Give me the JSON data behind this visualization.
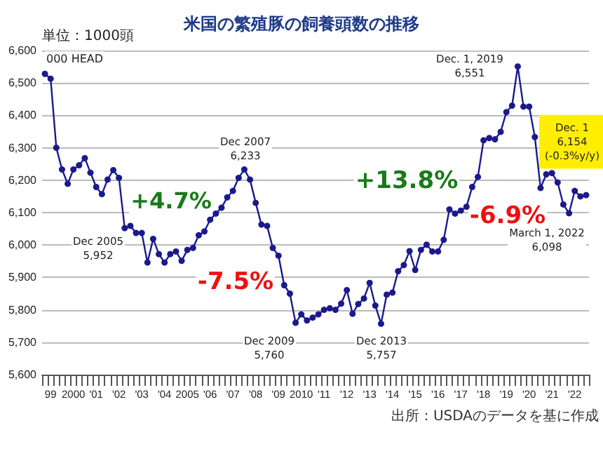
{
  "chart_data": {
    "type": "line",
    "title": "米国の繁殖豚の飼養頭数の推移",
    "ylabel": "単位：1000頭",
    "categories": [
      null,
      "99",
      null,
      null,
      null,
      "2000",
      null,
      null,
      null,
      "'01",
      null,
      null,
      null,
      "'02",
      null,
      null,
      null,
      "'03",
      null,
      null,
      null,
      "'04",
      null,
      null,
      null,
      "2005",
      null,
      null,
      null,
      "'06",
      null,
      null,
      null,
      "'07",
      null,
      null,
      null,
      "'08",
      null,
      null,
      null,
      "'09",
      null,
      null,
      null,
      "2010",
      null,
      null,
      null,
      "'11",
      null,
      null,
      null,
      "'12",
      null,
      null,
      null,
      "'13",
      null,
      null,
      null,
      "'14",
      null,
      null,
      null,
      "'15",
      null,
      null,
      null,
      "'16",
      null,
      null,
      null,
      "'17",
      null,
      null,
      null,
      "'18",
      null,
      null,
      null,
      "'19",
      null,
      null,
      null,
      "'20",
      null,
      null,
      null,
      "'21",
      null,
      null,
      null,
      "'22",
      null,
      null
    ],
    "series": [
      {
        "color": "#1a1a8c",
        "values": [
          6528,
          6513,
          6300,
          6233,
          6189,
          6233,
          6246,
          6268,
          6223,
          6179,
          6157,
          6202,
          6231,
          6207,
          6052,
          6059,
          6037,
          6037,
          5946,
          6019,
          5972,
          5946,
          5972,
          5980,
          5951,
          5985,
          5991,
          6030,
          6042,
          6078,
          6097,
          6115,
          6147,
          6167,
          6207,
          6233,
          6202,
          6130,
          6063,
          6059,
          5991,
          5967,
          5876,
          5850,
          5760,
          5786,
          5767,
          5776,
          5786,
          5800,
          5805,
          5800,
          5819,
          5861,
          5788,
          5818,
          5835,
          5883,
          5813,
          5757,
          5847,
          5853,
          5919,
          5938,
          5981,
          5923,
          5985,
          6001,
          5980,
          5980,
          6016,
          6110,
          6097,
          6106,
          6118,
          6179,
          6210,
          6323,
          6330,
          6326,
          6349,
          6410,
          6430,
          6551,
          6427,
          6427,
          6333,
          6176,
          6218,
          6222,
          6193,
          6125,
          6098,
          6167,
          6150,
          6154
        ]
      }
    ],
    "ylim": [
      5600,
      6600
    ],
    "yticks": [
      {
        "value": 5600,
        "label": "5,600"
      },
      {
        "value": 5700,
        "label": "5,700"
      },
      {
        "value": 5800,
        "label": "5,800"
      },
      {
        "value": 5900,
        "label": "5,900"
      },
      {
        "value": 6000,
        "label": "6,000"
      },
      {
        "value": 6100,
        "label": "6,100"
      },
      {
        "value": 6200,
        "label": "6,200"
      },
      {
        "value": 6300,
        "label": "6,300"
      },
      {
        "value": 6400,
        "label": "6,400"
      },
      {
        "value": 6500,
        "label": "6,500"
      },
      {
        "value": 6600,
        "label": "6,600"
      }
    ],
    "grid": "y",
    "marker": "circle",
    "line_style": "solid",
    "annotations": [
      "000 HEAD",
      "+4.7%",
      "-7.5%",
      "+13.8%",
      "-6.9%",
      "Dec 2005\n5,952",
      "Dec 2007\n6,233",
      "Dec 2009\n5,760",
      "Dec 2013\n5,757",
      "Dec. 1, 2019\n6,551",
      "Dec. 1\n6,154\n(-0.3%y/y)",
      "March 1, 2022\n6,098",
      "出所：USDAのデータを基に作成"
    ]
  }
}
